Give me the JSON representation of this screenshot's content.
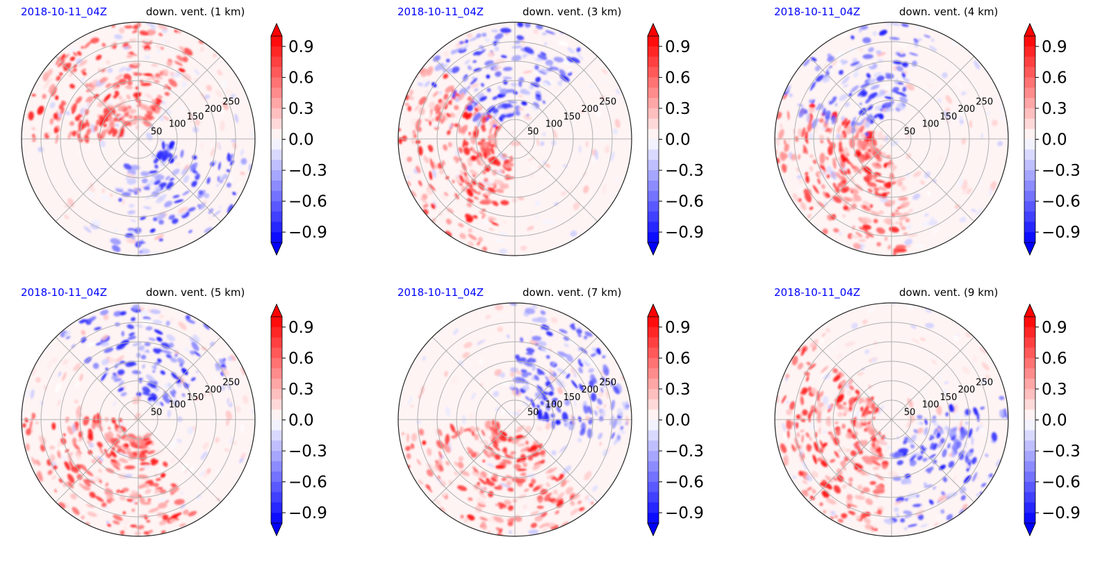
{
  "figure": {
    "colorbar": {
      "ticks": [
        0.9,
        0.6,
        0.3,
        0.0,
        -0.3,
        -0.6,
        -0.9
      ],
      "tick_labels": [
        "0.9",
        "0.6",
        "0.3",
        "0.0",
        "−0.3",
        "−0.6",
        "−0.9"
      ],
      "range": [
        -1.0,
        1.0
      ],
      "levels": 20,
      "colormap": "bwr",
      "extend": "both",
      "colors": {
        "negative": "#0000ff",
        "zero": "#ffffff",
        "positive": "#ff0000"
      }
    },
    "polar_axes": {
      "radial_ticks": [
        50,
        100,
        150,
        200,
        250
      ],
      "radial_tick_labels": [
        "50",
        "100",
        "150",
        "200",
        "250"
      ],
      "r_max": 300,
      "angular_gridlines_deg": [
        0,
        45,
        90,
        135,
        180,
        225,
        270,
        315
      ],
      "grid": true
    }
  },
  "chart_data": [
    {
      "type": "heatmap",
      "projection": "polar",
      "date": "2018-10-11_04Z",
      "title": "down. vent. (1 km)"
    },
    {
      "type": "heatmap",
      "projection": "polar",
      "date": "2018-10-11_04Z",
      "title": "down. vent. (3 km)"
    },
    {
      "type": "heatmap",
      "projection": "polar",
      "date": "2018-10-11_04Z",
      "title": "down. vent. (4 km)"
    },
    {
      "type": "heatmap",
      "projection": "polar",
      "date": "2018-10-11_04Z",
      "title": "down. vent. (5 km)"
    },
    {
      "type": "heatmap",
      "projection": "polar",
      "date": "2018-10-11_04Z",
      "title": "down. vent. (7 km)"
    },
    {
      "type": "heatmap",
      "projection": "polar",
      "date": "2018-10-11_04Z",
      "title": "down. vent. (9 km)"
    }
  ]
}
